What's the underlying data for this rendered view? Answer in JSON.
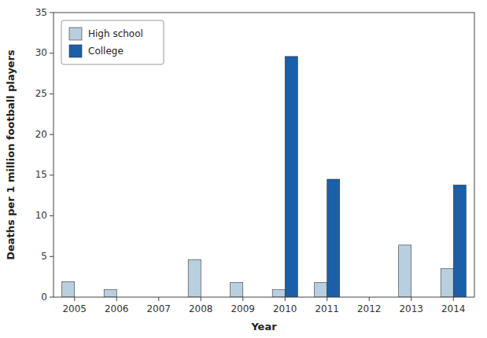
{
  "chart_data": {
    "type": "bar",
    "xlabel": "Year",
    "ylabel": "Deaths per 1 million football players",
    "categories": [
      "2005",
      "2006",
      "2007",
      "2008",
      "2009",
      "2010",
      "2011",
      "2012",
      "2013",
      "2014"
    ],
    "series": [
      {
        "name": "High school",
        "color": "#b8cfe0",
        "values": [
          1.9,
          0.9,
          0.0,
          4.6,
          1.8,
          0.9,
          1.8,
          0.0,
          6.4,
          3.5
        ]
      },
      {
        "name": "College",
        "color": "#1a5fa8",
        "values": [
          0.0,
          0.0,
          0.0,
          0.0,
          0.0,
          29.6,
          14.5,
          0.0,
          0.0,
          13.8
        ]
      }
    ],
    "ylim": [
      0,
      35
    ],
    "yticks": [
      0,
      5,
      10,
      15,
      20,
      25,
      30,
      35
    ],
    "grid": false,
    "legend": "upper left"
  }
}
